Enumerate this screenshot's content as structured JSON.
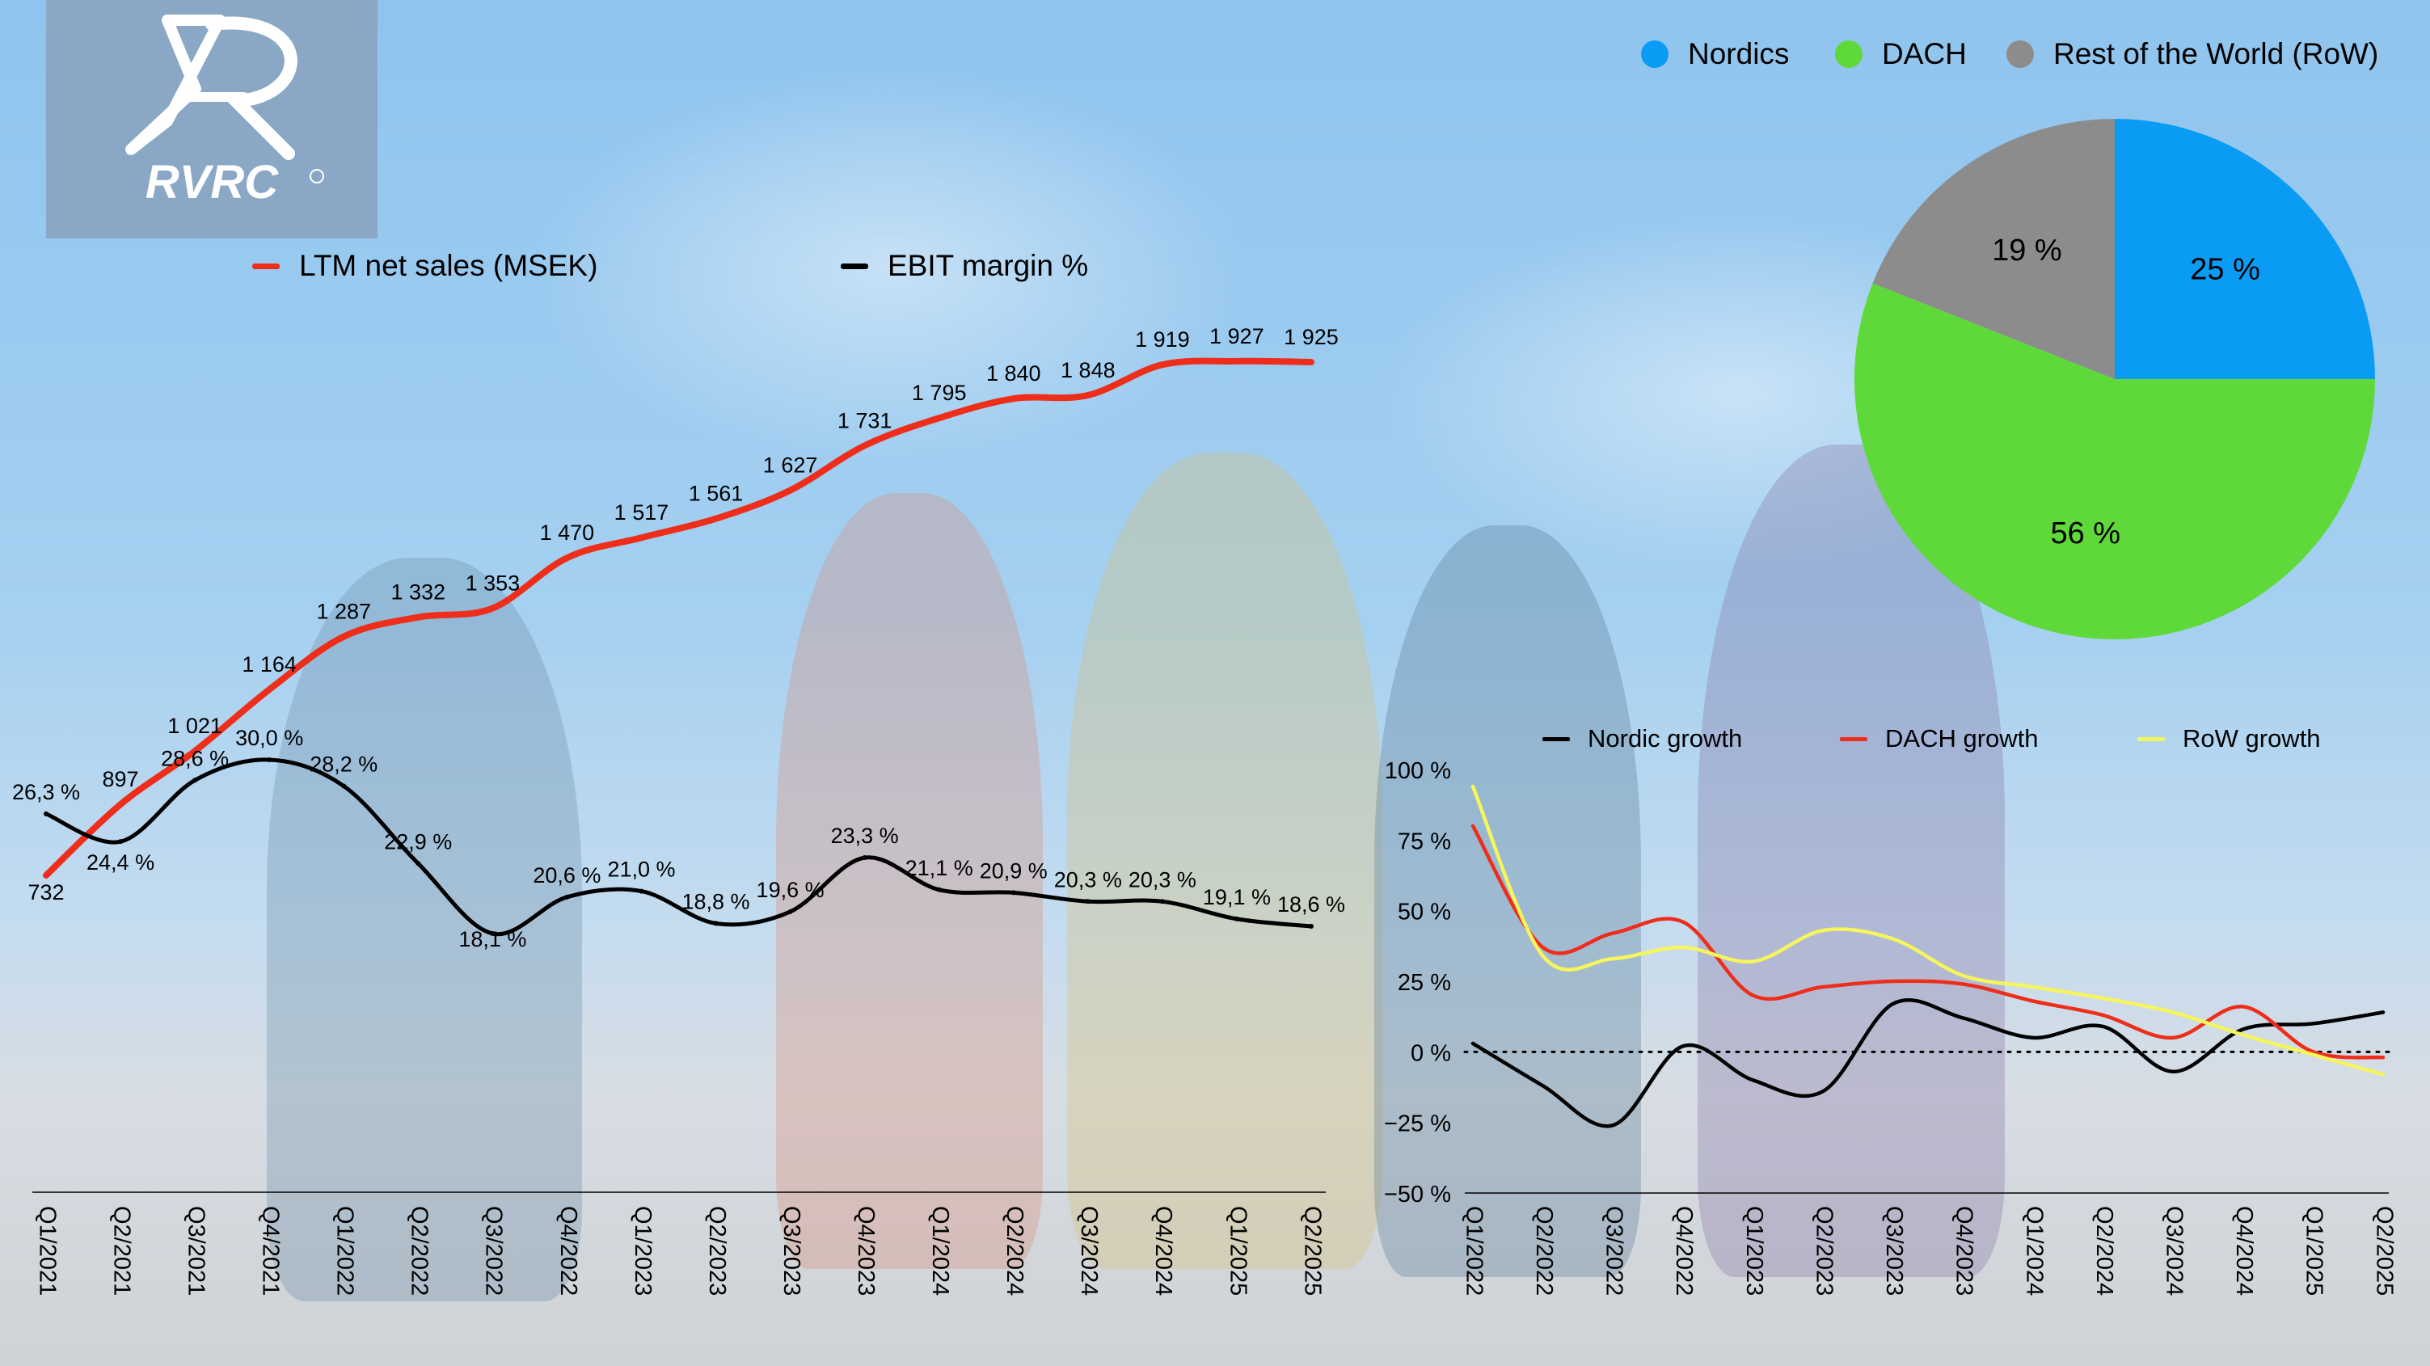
{
  "brand": {
    "logo_text": "RVRC"
  },
  "charts": {
    "left": {
      "legend": {
        "net_sales_label": "LTM net sales (MSEK)",
        "ebit_label": "EBIT margin %"
      }
    },
    "pie": {
      "legend": {
        "nordics": "Nordics",
        "dach": "DACH",
        "row": "Rest of the World (RoW)"
      }
    },
    "growth": {
      "legend": {
        "nordic": "Nordic growth",
        "dach": "DACH growth",
        "row": "RoW growth"
      }
    }
  },
  "colors": {
    "net_sales": "#ee2d1a",
    "ebit": "#000000",
    "nordics": "#0a9bf5",
    "dach": "#5fd93a",
    "row": "#8c8c8c",
    "row_growth": "#f6f55c"
  },
  "chart_data": [
    {
      "type": "line",
      "x": [
        "Q1/2021",
        "Q2/2021",
        "Q3/2021",
        "Q4/2021",
        "Q1/2022",
        "Q2/2022",
        "Q3/2022",
        "Q4/2022",
        "Q1/2023",
        "Q2/2023",
        "Q3/2023",
        "Q4/2023",
        "Q1/2024",
        "Q2/2024",
        "Q3/2024",
        "Q4/2024",
        "Q1/2025",
        "Q2/2025"
      ],
      "series": [
        {
          "name": "LTM net sales (MSEK)",
          "values": [
            732,
            897,
            1021,
            1164,
            1287,
            1332,
            1353,
            1470,
            1517,
            1561,
            1627,
            1731,
            1795,
            1840,
            1848,
            1919,
            1927,
            1925
          ],
          "labels": [
            "732",
            "897",
            "1 021",
            "1 164",
            "1 287",
            "1 332",
            "1 353",
            "1 470",
            "1 517",
            "1 561",
            "1 627",
            "1 731",
            "1 795",
            "1 840",
            "1 848",
            "1 919",
            "1 927",
            "1 925"
          ],
          "color": "#ee2d1a"
        },
        {
          "name": "EBIT margin %",
          "values": [
            26.3,
            24.4,
            28.6,
            30.0,
            28.2,
            22.9,
            18.1,
            20.6,
            21.0,
            18.8,
            19.6,
            23.3,
            21.1,
            20.9,
            20.3,
            20.3,
            19.1,
            18.6
          ],
          "labels": [
            "26,3 %",
            "24,4 %",
            "28,6 %",
            "30,0 %",
            "28,2 %",
            "22,9 %",
            "18,1 %",
            "20,6 %",
            "21,0 %",
            "18,8 %",
            "19,6 %",
            "23,3 %",
            "21,1 %",
            "20,9 %",
            "20,3 %",
            "20,3 %",
            "19,1 %",
            "18,6 %"
          ],
          "color": "#000000"
        }
      ],
      "grid": false
    },
    {
      "type": "pie",
      "categories": [
        "Nordics",
        "DACH",
        "Rest of the World (RoW)"
      ],
      "values": [
        25,
        56,
        19
      ],
      "labels": [
        "25 %",
        "56 %",
        "19 %"
      ],
      "colors": [
        "#0a9bf5",
        "#5fd93a",
        "#8c8c8c"
      ],
      "legend": "top"
    },
    {
      "type": "line",
      "x": [
        "Q1/2022",
        "Q2/2022",
        "Q3/2022",
        "Q4/2022",
        "Q1/2023",
        "Q2/2023",
        "Q3/2023",
        "Q4/2023",
        "Q1/2024",
        "Q2/2024",
        "Q3/2024",
        "Q4/2024",
        "Q1/2025",
        "Q2/2025"
      ],
      "series": [
        {
          "name": "Nordic growth",
          "values": [
            3,
            -12,
            -26,
            2,
            -10,
            -14,
            17,
            12,
            5,
            9,
            -7,
            8,
            10,
            14
          ],
          "color": "#000000"
        },
        {
          "name": "DACH growth",
          "values": [
            80,
            37,
            42,
            46,
            20,
            23,
            25,
            24,
            18,
            13,
            5,
            16,
            0,
            -2
          ],
          "color": "#ee2d1a"
        },
        {
          "name": "RoW growth",
          "values": [
            94,
            34,
            33,
            37,
            32,
            43,
            40,
            27,
            23,
            19,
            14,
            6,
            -1,
            -8
          ],
          "color": "#f6f55c"
        }
      ],
      "yticks": [
        "100 %",
        "75 %",
        "50 %",
        "25 %",
        "0 %",
        "−25 %",
        "−50 %"
      ],
      "ylim": [
        -50,
        100
      ],
      "zero_line": "dotted",
      "grid": false,
      "legend": "top"
    }
  ]
}
